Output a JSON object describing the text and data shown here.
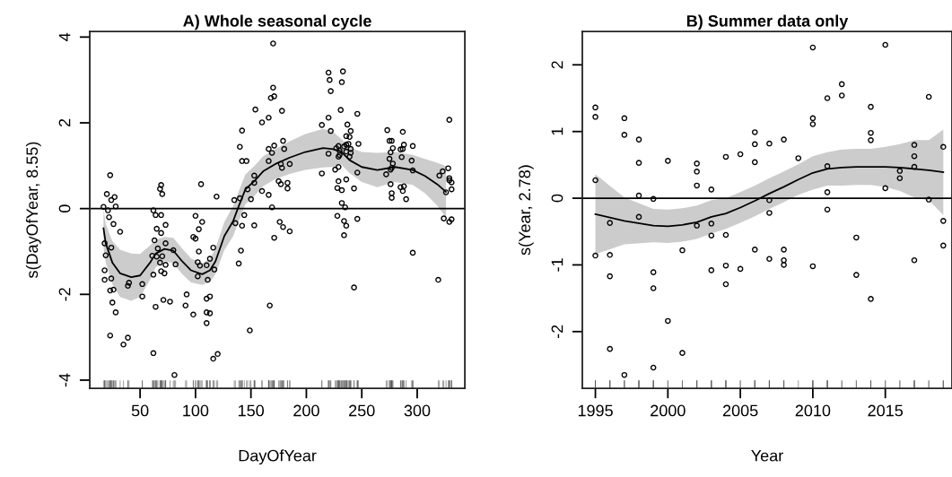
{
  "chart_data": [
    {
      "type": "scatter",
      "title": "A) Whole seasonal cycle",
      "xlabel": "DayOfYear",
      "ylabel": "s(DayOfYear, 8.55)",
      "xlim": [
        4.6,
        343
      ],
      "xticks": [
        50,
        100,
        150,
        200,
        250,
        300
      ],
      "ylim": [
        -4.19,
        4.13
      ],
      "yticks": [
        -4,
        -2,
        0,
        2,
        4
      ],
      "grid": false,
      "ref_lines": [
        {
          "axis": "y",
          "value": 0,
          "color": "#000000"
        }
      ],
      "series": [
        {
          "color": "#000000",
          "marker": "circle",
          "x": [
            23,
            20,
            27,
            24,
            17,
            28,
            21,
            22,
            26,
            32,
            18,
            24,
            19,
            18,
            18,
            24,
            23,
            26,
            25,
            28,
            23,
            39,
            35,
            40,
            39,
            52,
            52,
            62,
            64,
            62,
            69,
            68,
            70,
            62,
            64,
            69,
            65,
            73,
            69,
            63,
            66,
            73,
            61,
            65,
            70,
            68,
            73,
            69,
            72,
            71,
            77,
            82,
            80,
            81,
            105,
            92,
            91,
            98,
            100,
            106,
            103,
            98,
            100,
            103,
            102,
            104,
            102,
            110,
            113,
            111,
            116,
            117,
            119,
            110,
            113,
            110,
            113,
            110,
            116,
            120,
            135,
            140,
            136,
            139,
            141,
            142,
            142,
            140,
            142,
            146,
            144,
            147,
            149,
            153,
            153,
            150,
            153,
            170,
            170,
            171,
            168,
            154,
            166,
            160,
            178,
            166,
            169,
            171,
            166,
            179,
            180,
            185,
            177,
            178,
            160,
            166,
            175,
            177,
            183,
            183,
            169,
            176,
            179,
            185,
            171,
            167,
            220,
            233,
            221,
            232,
            222,
            231,
            220,
            214,
            246,
            222,
            237,
            240,
            236,
            239,
            247,
            236,
            238,
            229,
            227,
            234,
            230,
            240,
            236,
            220,
            230,
            229,
            239,
            240,
            214,
            229,
            226,
            246,
            236,
            229,
            228,
            232,
            243,
            232,
            235,
            228,
            234,
            236,
            246,
            234,
            243,
            273,
            287,
            275,
            277,
            288,
            296,
            278,
            285,
            287,
            276,
            275,
            286,
            278,
            276,
            277,
            272,
            295,
            296,
            276,
            285,
            288,
            287,
            277,
            277,
            290,
            296,
            319,
            329,
            328,
            323,
            320,
            329,
            329,
            331,
            331,
            326,
            324,
            331,
            329
          ],
          "values": [
            0.78,
            0.34,
            0.27,
            0.2,
            0.04,
            0.05,
            -0.04,
            -0.2,
            -0.36,
            -0.54,
            -0.81,
            -0.91,
            -1.09,
            -1.44,
            -1.66,
            -1.63,
            -1.91,
            -1.89,
            -2.19,
            -2.42,
            -2.96,
            -3.01,
            -3.17,
            -1.73,
            -1.8,
            -1.76,
            -2.05,
            -3.37,
            -2.29,
            -1.54,
            0.55,
            0.46,
            0.34,
            -0.04,
            -0.15,
            -0.15,
            -0.47,
            -0.38,
            -0.57,
            -0.74,
            -0.93,
            -0.81,
            -1.1,
            -1.12,
            -1.11,
            -1.26,
            -1.31,
            -1.46,
            -1.51,
            -2.13,
            -2.17,
            -1.3,
            -0.97,
            -3.88,
            0.57,
            -2.0,
            -2.26,
            -2.47,
            -0.17,
            -0.31,
            -0.48,
            -0.66,
            -0.7,
            -1.0,
            -1.25,
            -1.33,
            -1.58,
            -1.32,
            -1.17,
            -1.66,
            -0.91,
            -1.42,
            0.28,
            -2.1,
            -2.05,
            -2.42,
            -2.44,
            -2.67,
            -3.5,
            -3.39,
            0.2,
            0.24,
            -0.34,
            -1.28,
            -0.98,
            -0.4,
            1.82,
            1.44,
            1.11,
            1.11,
            -0.15,
            0.45,
            -2.84,
            0.77,
            0.6,
            0.22,
            -0.39,
            3.85,
            2.82,
            2.62,
            2.58,
            2.31,
            2.12,
            2.01,
            2.28,
            1.11,
            1.3,
            1.47,
            1.39,
            1.58,
            1.39,
            1.04,
            1.04,
            0.95,
            0.41,
            0.32,
            0.64,
            0.57,
            0.6,
            0.47,
            0.03,
            -0.31,
            -0.43,
            -0.53,
            -0.68,
            -2.26,
            3.17,
            3.2,
            3.0,
            2.95,
            2.74,
            2.3,
            2.12,
            1.95,
            2.21,
            1.81,
            1.96,
            1.81,
            1.69,
            1.67,
            1.51,
            1.49,
            1.51,
            1.46,
            1.41,
            1.45,
            1.35,
            1.39,
            1.33,
            1.28,
            1.25,
            1.21,
            1.21,
            1.3,
            0.82,
            0.97,
            0.91,
            0.84,
            0.68,
            0.64,
            0.48,
            0.43,
            0.47,
            0.13,
            0.03,
            -0.17,
            -0.29,
            -0.4,
            -0.24,
            -0.62,
            -1.84,
            1.83,
            1.79,
            1.58,
            1.58,
            1.49,
            1.46,
            1.41,
            1.38,
            1.39,
            1.31,
            1.16,
            1.2,
            1.05,
            0.91,
            0.95,
            0.8,
            1.12,
            0.89,
            0.57,
            0.5,
            0.52,
            0.41,
            0.36,
            0.25,
            0.22,
            -1.03,
            -1.66,
            2.07,
            0.94,
            0.87,
            0.77,
            0.71,
            0.66,
            0.61,
            0.45,
            0.38,
            -0.23,
            -0.25,
            -0.31
          ]
        },
        {
          "type": "line",
          "color": "#000000",
          "line_style": "solid",
          "x": [
            17,
            19,
            25,
            32,
            42,
            50,
            59,
            64,
            72,
            80,
            88,
            96,
            106,
            113,
            118,
            126,
            134,
            138,
            145,
            153,
            161,
            172,
            185,
            199,
            215,
            223,
            231,
            239,
            250,
            264,
            280,
            296,
            307,
            318,
            326
          ],
          "values": [
            -0.46,
            -0.81,
            -1.26,
            -1.51,
            -1.6,
            -1.56,
            -1.26,
            -1.05,
            -0.94,
            -0.98,
            -1.23,
            -1.44,
            -1.53,
            -1.44,
            -1.23,
            -0.64,
            -0.29,
            -0.01,
            0.45,
            0.64,
            0.87,
            1.04,
            1.19,
            1.32,
            1.41,
            1.39,
            1.34,
            1.13,
            0.97,
            0.9,
            0.97,
            0.9,
            0.76,
            0.57,
            0.39
          ],
          "lower": [
            -0.91,
            -1.26,
            -1.76,
            -2.06,
            -2.15,
            -2.06,
            -1.66,
            -1.37,
            -1.22,
            -1.28,
            -1.53,
            -1.72,
            -1.78,
            -1.71,
            -1.53,
            -0.97,
            -0.64,
            -0.36,
            0.1,
            0.29,
            0.52,
            0.69,
            0.81,
            0.9,
            0.96,
            0.97,
            1.04,
            0.83,
            0.62,
            0.5,
            0.62,
            0.55,
            0.36,
            0.07,
            -0.21
          ],
          "upper": [
            -0.01,
            -0.36,
            -0.76,
            -0.96,
            -1.05,
            -1.06,
            -0.86,
            -0.73,
            -0.66,
            -0.68,
            -0.93,
            -1.16,
            -1.28,
            -1.17,
            -0.93,
            -0.31,
            0.06,
            0.34,
            0.8,
            0.99,
            1.22,
            1.39,
            1.57,
            1.74,
            1.86,
            1.81,
            1.64,
            1.43,
            1.32,
            1.3,
            1.32,
            1.25,
            1.16,
            1.07,
            0.99
          ]
        }
      ]
    },
    {
      "type": "scatter",
      "title": "B) Summer data only",
      "xlabel": "Year",
      "ylabel": "s(Year, 2.78)",
      "xlim": [
        1994.1,
        2019.6
      ],
      "xticks": [
        1995,
        2000,
        2005,
        2010,
        2015
      ],
      "ylim": [
        -2.85,
        2.5
      ],
      "yticks": [
        -2,
        -1,
        0,
        1,
        2
      ],
      "grid": false,
      "ref_lines": [
        {
          "axis": "y",
          "value": 0,
          "color": "#000000"
        }
      ],
      "series": [
        {
          "color": "#000000",
          "marker": "circle",
          "x": [
            1995,
            1995,
            1995,
            1995,
            1996,
            1996,
            1996,
            1996,
            1997,
            1997,
            1997,
            1998,
            1998,
            1998,
            1998,
            1999,
            1999,
            1999,
            1999,
            2000,
            2000,
            2001,
            2001,
            2002,
            2002,
            2002,
            2002,
            2003,
            2003,
            2003,
            2003,
            2004,
            2004,
            2004,
            2004,
            2005,
            2005,
            2006,
            2006,
            2006,
            2006,
            2007,
            2007,
            2007,
            2007,
            2008,
            2008,
            2008,
            2008,
            2009,
            2010,
            2010,
            2010,
            2010,
            2011,
            2011,
            2011,
            2011,
            2012,
            2012,
            2013,
            2013,
            2014,
            2014,
            2014,
            2014,
            2015,
            2015,
            2016,
            2016,
            2017,
            2017,
            2017,
            2017,
            2018,
            2018,
            2019,
            2019,
            2019
          ],
          "values": [
            1.36,
            1.22,
            0.27,
            -0.86,
            -0.37,
            -0.85,
            -1.17,
            -2.26,
            1.2,
            0.95,
            -2.65,
            0.88,
            0.53,
            0.04,
            -0.28,
            -0.01,
            -1.11,
            -1.35,
            -2.54,
            0.56,
            -1.84,
            -0.78,
            -2.32,
            0.52,
            0.4,
            0.19,
            -0.41,
            0.13,
            -0.38,
            -0.56,
            -1.08,
            0.62,
            -0.55,
            -1.01,
            -1.29,
            0.66,
            -1.06,
            0.99,
            0.81,
            0.54,
            -0.77,
            0.82,
            -0.03,
            -0.22,
            -0.91,
            0.88,
            -0.77,
            -0.93,
            -1.0,
            0.6,
            2.26,
            1.2,
            1.11,
            -1.02,
            1.5,
            0.48,
            0.09,
            -0.17,
            1.71,
            1.54,
            -0.59,
            -1.15,
            1.37,
            0.98,
            0.87,
            -1.51,
            2.3,
            0.15,
            0.41,
            0.3,
            0.8,
            0.63,
            0.47,
            -0.93,
            1.52,
            -0.02,
            0.77,
            -0.34,
            -0.71
          ]
        },
        {
          "type": "line",
          "color": "#000000",
          "line_style": "solid",
          "x": [
            1995,
            1997,
            1999,
            2000,
            2001,
            2002,
            2003,
            2004,
            2005,
            2006,
            2007,
            2008,
            2009,
            2010,
            2011,
            2012,
            2013,
            2014,
            2015,
            2016,
            2017,
            2018,
            2019
          ],
          "values": [
            -0.24,
            -0.34,
            -0.41,
            -0.42,
            -0.4,
            -0.36,
            -0.28,
            -0.23,
            -0.14,
            -0.04,
            0.07,
            0.17,
            0.28,
            0.38,
            0.44,
            0.46,
            0.47,
            0.47,
            0.47,
            0.46,
            0.44,
            0.42,
            0.39
          ],
          "lower": [
            -0.84,
            -0.69,
            -0.66,
            -0.67,
            -0.65,
            -0.61,
            -0.53,
            -0.46,
            -0.37,
            -0.27,
            -0.16,
            -0.06,
            0.05,
            0.13,
            0.19,
            0.19,
            0.2,
            0.2,
            0.17,
            0.11,
            0.01,
            -0.03,
            -0.25
          ],
          "upper": [
            0.36,
            0.01,
            -0.16,
            -0.17,
            -0.15,
            -0.11,
            -0.03,
            0.0,
            0.09,
            0.19,
            0.3,
            0.4,
            0.51,
            0.63,
            0.69,
            0.73,
            0.74,
            0.74,
            0.77,
            0.81,
            0.87,
            0.87,
            1.03
          ]
        }
      ]
    }
  ]
}
